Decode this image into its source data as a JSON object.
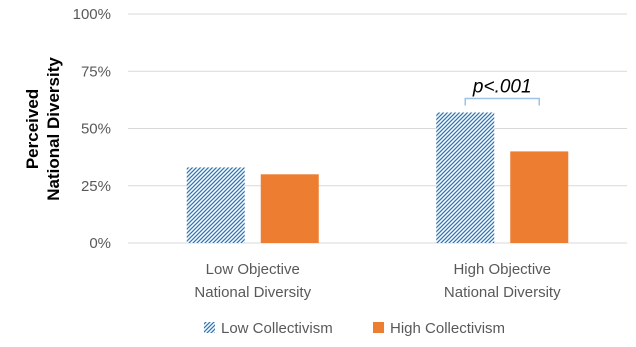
{
  "chart_data": {
    "type": "bar",
    "title": "",
    "ylabel_lines": [
      "Perceived",
      "National Diversity"
    ],
    "categories": [
      [
        "Low Objective",
        "National Diversity"
      ],
      [
        "High Objective",
        "National Diversity"
      ]
    ],
    "ylim": [
      0,
      100
    ],
    "yticks": [
      "0%",
      "25%",
      "50%",
      "75%",
      "100%"
    ],
    "ytick_values": [
      0,
      25,
      50,
      75,
      100
    ],
    "grid": true,
    "legend_position": "bottom",
    "series": [
      {
        "name": "Low Collectivism",
        "values": [
          33,
          57
        ],
        "color": "#2e75b6",
        "pattern": "diagonal-hatch"
      },
      {
        "name": "High Collectivism",
        "values": [
          30,
          40
        ],
        "color": "#ed7d31",
        "pattern": "solid"
      }
    ],
    "annotations": [
      {
        "text": "p<.001",
        "category_index": 1
      }
    ]
  }
}
